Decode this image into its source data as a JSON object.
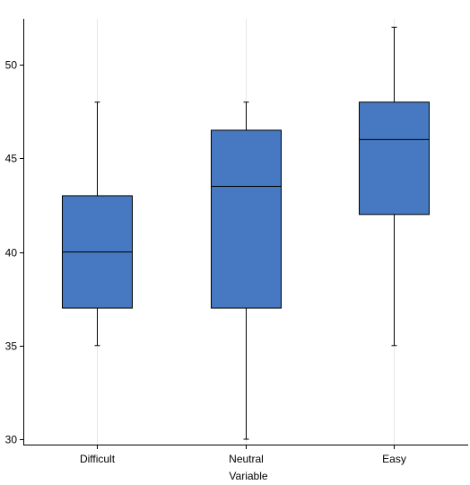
{
  "chart_data": {
    "type": "box",
    "xlabel": "Variable",
    "ylabel": "",
    "ylim": [
      29.7,
      52.3
    ],
    "yticks": [
      30,
      35,
      40,
      45,
      50
    ],
    "grid": {
      "vertical": true,
      "horizontal": false
    },
    "box_color": "#4679c1",
    "categories": [
      "Difficult",
      "Neutral",
      "Easy"
    ],
    "boxes": [
      {
        "category": "Difficult",
        "min": 35,
        "q1": 37,
        "median": 40,
        "q3": 43,
        "max": 48
      },
      {
        "category": "Neutral",
        "min": 30,
        "q1": 37,
        "median": 43.5,
        "q3": 46.5,
        "max": 48
      },
      {
        "category": "Easy",
        "min": 35,
        "q1": 42,
        "median": 46,
        "q3": 48,
        "max": 52
      }
    ]
  }
}
